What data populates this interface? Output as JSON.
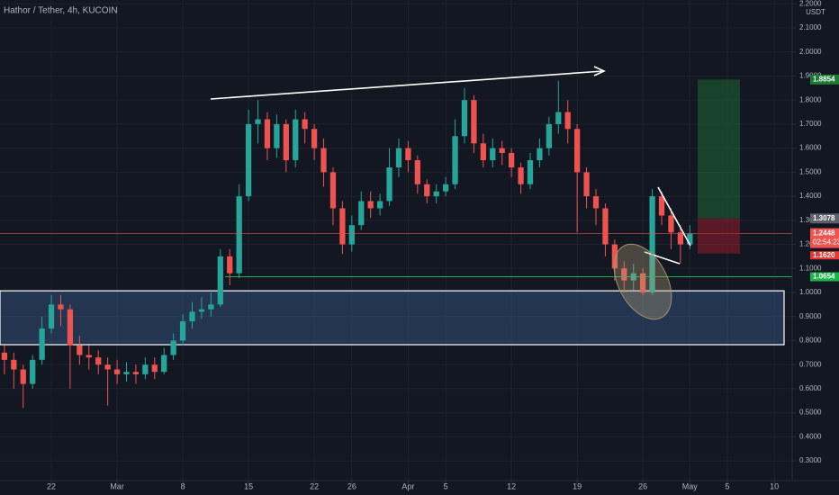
{
  "chart_data": {
    "type": "candlestick",
    "title": "Hathor / Tether, 4h, KUCOIN",
    "y_unit": "USDT",
    "x": [
      -5,
      -4,
      -3,
      -2,
      -1,
      0,
      1,
      2,
      3,
      4,
      5,
      6,
      7,
      8,
      9,
      10,
      11,
      12,
      13,
      14,
      15,
      16,
      17,
      18,
      19,
      20,
      21,
      22,
      23,
      24,
      25,
      26,
      27,
      28,
      29,
      30,
      31,
      32,
      33,
      34,
      35,
      36,
      37,
      38,
      39,
      40,
      41,
      42,
      43,
      44,
      45,
      46,
      47,
      48,
      49,
      50,
      51,
      52,
      53,
      54,
      55,
      56,
      57,
      58,
      59,
      60,
      61,
      62,
      63,
      64,
      65,
      66,
      67,
      68
    ],
    "open": [
      0.75,
      0.72,
      0.68,
      0.62,
      0.72,
      0.85,
      0.95,
      0.93,
      0.78,
      0.74,
      0.73,
      0.7,
      0.68,
      0.66,
      0.67,
      0.66,
      0.7,
      0.67,
      0.74,
      0.8,
      0.88,
      0.92,
      0.93,
      0.95,
      1.15,
      1.08,
      1.4,
      1.7,
      1.72,
      1.6,
      1.7,
      1.55,
      1.72,
      1.68,
      1.6,
      1.5,
      1.35,
      1.2,
      1.28,
      1.38,
      1.35,
      1.38,
      1.52,
      1.6,
      1.55,
      1.45,
      1.4,
      1.42,
      1.45,
      1.65,
      1.8,
      1.62,
      1.55,
      1.6,
      1.58,
      1.52,
      1.45,
      1.55,
      1.6,
      1.7,
      1.75,
      1.68,
      1.5,
      1.4,
      1.35,
      1.2,
      1.1,
      1.05,
      1.08,
      1.0,
      1.4,
      1.32,
      1.25,
      1.2
    ],
    "high": [
      0.78,
      0.75,
      0.7,
      0.74,
      0.9,
      0.99,
      0.99,
      0.95,
      0.82,
      0.78,
      0.76,
      0.73,
      0.72,
      0.71,
      0.7,
      0.73,
      0.73,
      0.77,
      0.83,
      0.91,
      0.96,
      0.98,
      1.0,
      1.18,
      1.18,
      1.45,
      1.76,
      1.8,
      1.75,
      1.74,
      1.72,
      1.76,
      1.75,
      1.7,
      1.64,
      1.52,
      1.38,
      1.32,
      1.42,
      1.42,
      1.41,
      1.6,
      1.64,
      1.63,
      1.57,
      1.47,
      1.45,
      1.48,
      1.72,
      1.85,
      1.82,
      1.66,
      1.64,
      1.63,
      1.6,
      1.54,
      1.58,
      1.64,
      1.73,
      1.88,
      1.8,
      1.7,
      1.52,
      1.43,
      1.37,
      1.22,
      1.13,
      1.12,
      1.1,
      1.43,
      1.42,
      1.35,
      1.28,
      1.28
    ],
    "low": [
      0.66,
      0.6,
      0.52,
      0.6,
      0.7,
      0.83,
      0.86,
      0.6,
      0.7,
      0.68,
      0.66,
      0.53,
      0.62,
      0.63,
      0.62,
      0.64,
      0.64,
      0.66,
      0.72,
      0.78,
      0.85,
      0.89,
      0.9,
      0.94,
      1.03,
      1.06,
      1.38,
      1.62,
      1.55,
      1.56,
      1.5,
      1.52,
      1.62,
      1.55,
      1.44,
      1.28,
      1.16,
      1.17,
      1.26,
      1.31,
      1.32,
      1.36,
      1.48,
      1.5,
      1.41,
      1.37,
      1.37,
      1.4,
      1.43,
      1.62,
      1.58,
      1.52,
      1.52,
      1.53,
      1.48,
      1.41,
      1.43,
      1.52,
      1.57,
      1.66,
      1.62,
      1.25,
      1.35,
      1.28,
      1.15,
      1.05,
      1.0,
      1.01,
      0.99,
      0.99,
      1.28,
      1.18,
      1.12,
      1.18
    ],
    "close": [
      0.72,
      0.68,
      0.62,
      0.72,
      0.85,
      0.95,
      0.93,
      0.78,
      0.74,
      0.73,
      0.7,
      0.68,
      0.66,
      0.67,
      0.66,
      0.7,
      0.67,
      0.74,
      0.8,
      0.88,
      0.92,
      0.93,
      0.95,
      1.15,
      1.08,
      1.4,
      1.7,
      1.72,
      1.6,
      1.7,
      1.55,
      1.72,
      1.68,
      1.6,
      1.5,
      1.35,
      1.2,
      1.28,
      1.38,
      1.35,
      1.38,
      1.52,
      1.6,
      1.55,
      1.45,
      1.4,
      1.42,
      1.45,
      1.65,
      1.8,
      1.62,
      1.55,
      1.6,
      1.58,
      1.52,
      1.45,
      1.55,
      1.6,
      1.7,
      1.75,
      1.68,
      1.5,
      1.4,
      1.35,
      1.2,
      1.1,
      1.05,
      1.08,
      1.0,
      1.4,
      1.32,
      1.25,
      1.2,
      1.245
    ],
    "up_color": "#26a69a",
    "down_color": "#ef5350",
    "xlim": [
      -5.47,
      78.9
    ],
    "xticks": [
      {
        "value": 0,
        "label": "22"
      },
      {
        "value": 7,
        "label": "Mar"
      },
      {
        "value": 14,
        "label": "8"
      },
      {
        "value": 21,
        "label": "15"
      },
      {
        "value": 28,
        "label": "22"
      },
      {
        "value": 32,
        "label": "26"
      },
      {
        "value": 38,
        "label": "Apr"
      },
      {
        "value": 42,
        "label": "5"
      },
      {
        "value": 49,
        "label": "12"
      },
      {
        "value": 56,
        "label": "19"
      },
      {
        "value": 63,
        "label": "26"
      },
      {
        "value": 68,
        "label": "May"
      },
      {
        "value": 72,
        "label": "5"
      },
      {
        "value": 77,
        "label": "10"
      }
    ],
    "ylim": [
      0.218,
      2.216
    ],
    "yticks": [
      {
        "value": 0.3,
        "label": "0.3000"
      },
      {
        "value": 0.4,
        "label": "0.4000"
      },
      {
        "value": 0.5,
        "label": "0.5000"
      },
      {
        "value": 0.6,
        "label": "0.6000"
      },
      {
        "value": 0.7,
        "label": "0.7000"
      },
      {
        "value": 0.8,
        "label": "0.8000"
      },
      {
        "value": 0.9,
        "label": "0.9000"
      },
      {
        "value": 1,
        "label": "1.0000"
      },
      {
        "value": 1.1,
        "label": "1.1000"
      },
      {
        "value": 1.2,
        "label": "1.2000"
      },
      {
        "value": 1.3,
        "label": "1.3000"
      },
      {
        "value": 1.4,
        "label": "1.4000"
      },
      {
        "value": 1.5,
        "label": "1.5000"
      },
      {
        "value": 1.6,
        "label": "1.6000"
      },
      {
        "value": 1.7,
        "label": "1.7000"
      },
      {
        "value": 1.8,
        "label": "1.8000"
      },
      {
        "value": 1.9,
        "label": "1.9000"
      },
      {
        "value": 2,
        "label": "2.0000"
      },
      {
        "value": 2.1,
        "label": "2.1000"
      },
      {
        "value": 2.2,
        "label": "2.2000"
      }
    ],
    "grid": true,
    "target": {
      "value": 1.8854,
      "label": "1.8854",
      "color": "#1e7b34"
    },
    "entry": {
      "value": 1.3078,
      "label": "1.3078",
      "color": "#5d606b"
    },
    "last_price": {
      "value": 1.2448,
      "label": "1.2448",
      "color": "#ef5350"
    },
    "countdown": "02:54:23",
    "stop": {
      "value": 1.162,
      "label": "1.1620",
      "color": "#e53935"
    },
    "level": {
      "value": 1.0654,
      "label": "1.0654",
      "color": "#1eb34a"
    },
    "zone": [
      0.783,
      1.007
    ]
  }
}
